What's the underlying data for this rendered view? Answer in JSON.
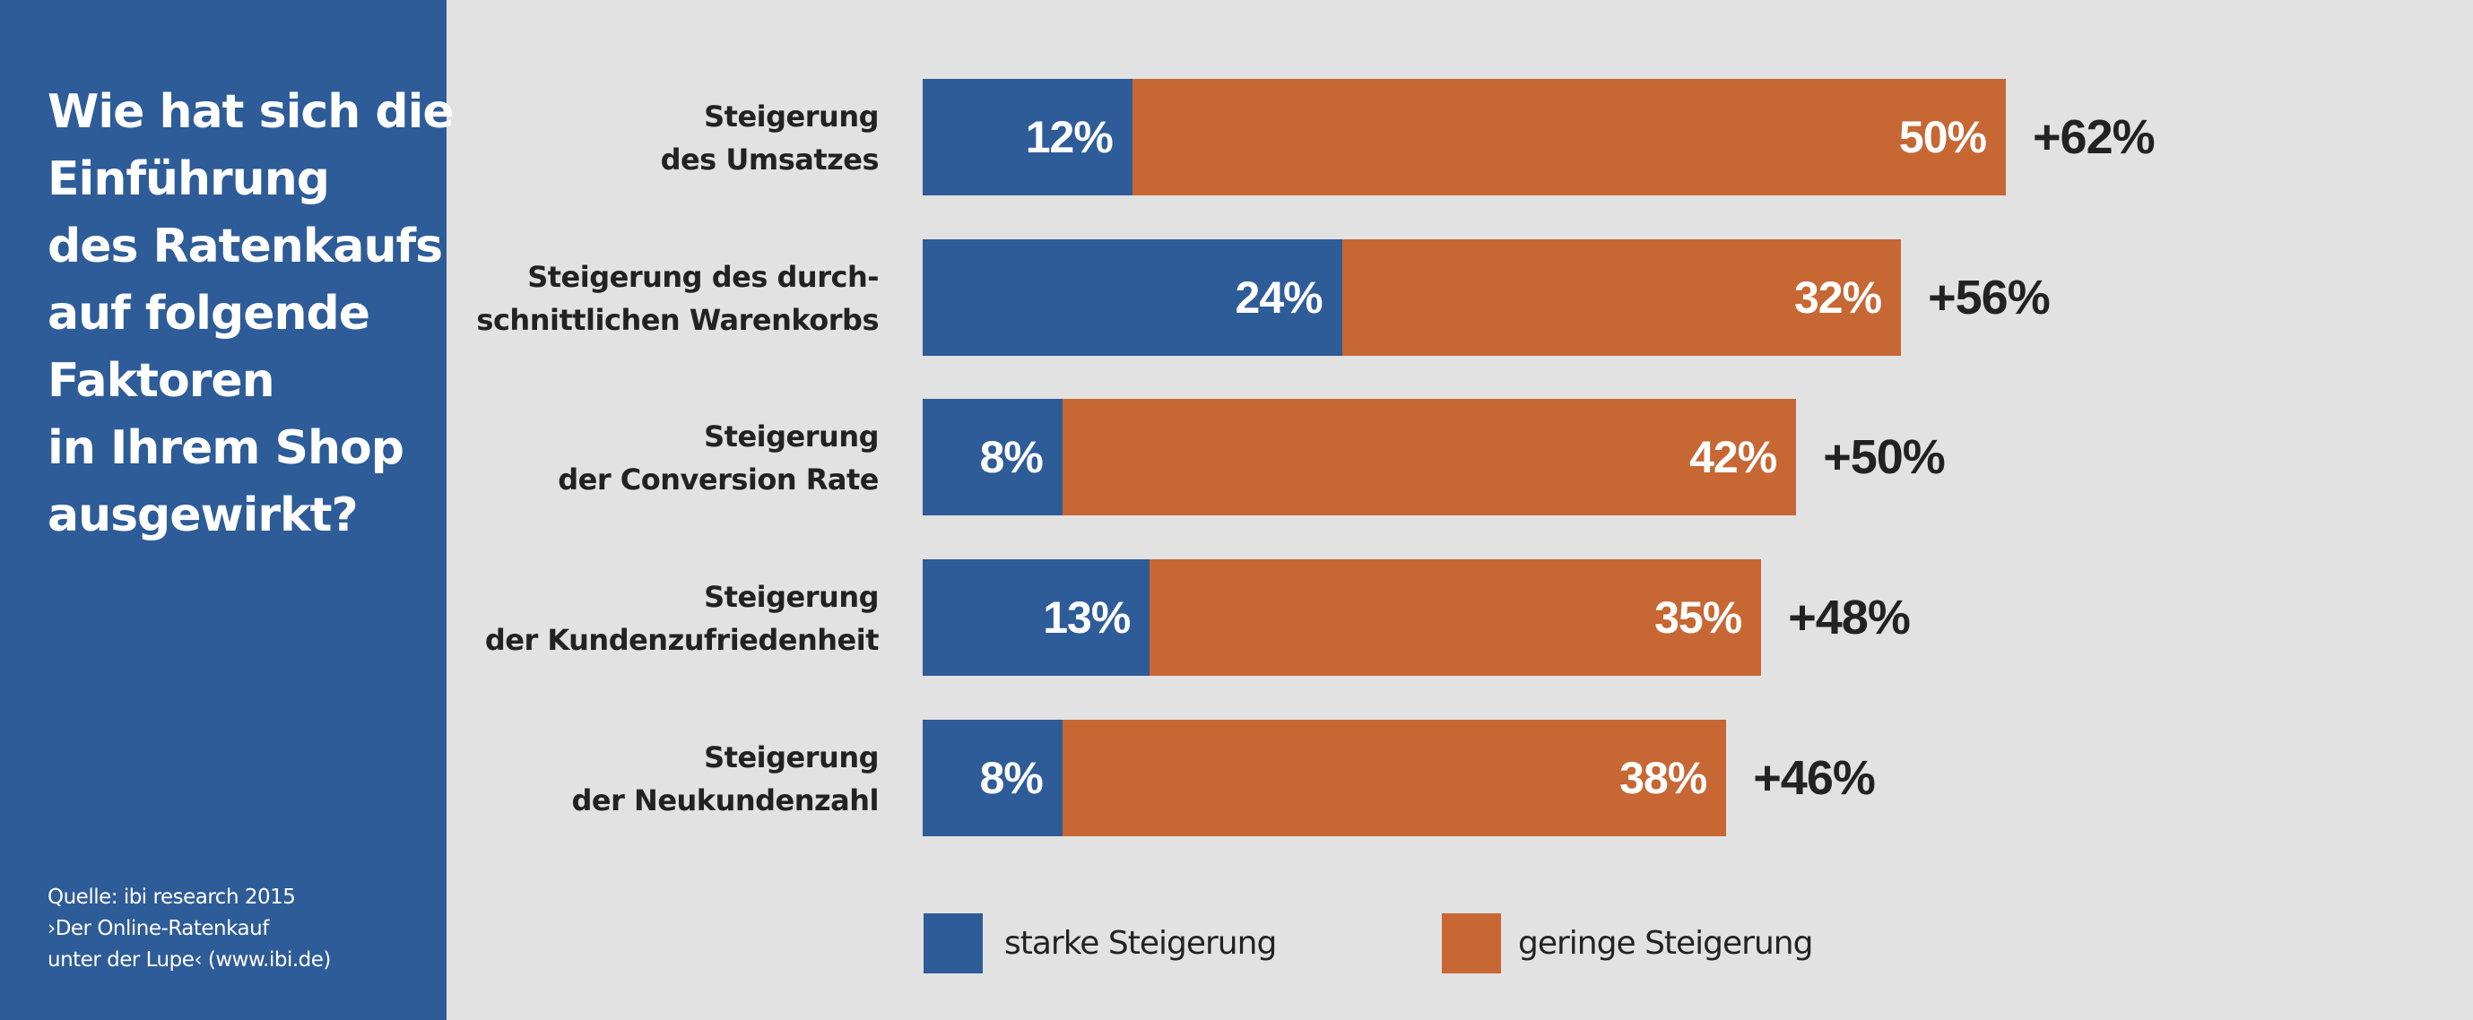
{
  "title_lines": [
    "Wie hat sich die",
    "Einführung",
    "des Ratenkaufs",
    "auf folgende",
    "Faktoren",
    "in Ihrem Shop",
    "ausgewirkt?"
  ],
  "source_lines": [
    "Quelle: ibi research 2015",
    "›Der Online-Ratenkauf",
    "unter der Lupe‹ (www.ibi.de)"
  ],
  "colors": {
    "starke": "#2E5C98",
    "geringe": "#C66734",
    "background": "#E2E2E2",
    "panel": "#2E5C98"
  },
  "chart_data": {
    "type": "bar",
    "orientation": "horizontal",
    "stacked": true,
    "title": "Wie hat sich die Einführung des Ratenkaufs auf folgende Faktoren in Ihrem Shop ausgewirkt?",
    "categories": [
      [
        "Steigerung",
        "des Umsatzes"
      ],
      [
        "Steigerung des durch-",
        "schnittlichen Warenkorbs"
      ],
      [
        "Steigerung",
        "der Conversion Rate"
      ],
      [
        "Steigerung",
        "der Kundenzufriedenheit"
      ],
      [
        "Steigerung",
        "der Neukundenzahl"
      ]
    ],
    "series": [
      {
        "name": "starke Steigerung",
        "values": [
          12,
          24,
          8,
          13,
          8
        ],
        "labels": [
          "12%",
          "24%",
          "8%",
          "13%",
          "8%"
        ]
      },
      {
        "name": "geringe Steigerung",
        "values": [
          50,
          32,
          42,
          35,
          38
        ],
        "labels": [
          "50%",
          "32%",
          "42%",
          "35%",
          "38%"
        ]
      }
    ],
    "totals": [
      "+62%",
      "+56%",
      "+50%",
      "+48%",
      "+46%"
    ],
    "xlabel": "",
    "ylabel": "",
    "xlim": [
      0,
      62
    ],
    "grid": false,
    "legend": {
      "position": "bottom",
      "entries": [
        "starke Steigerung",
        "geringe Steigerung"
      ]
    },
    "source": "Quelle: ibi research 2015 ›Der Online-Ratenkauf unter der Lupe‹ (www.ibi.de)"
  }
}
